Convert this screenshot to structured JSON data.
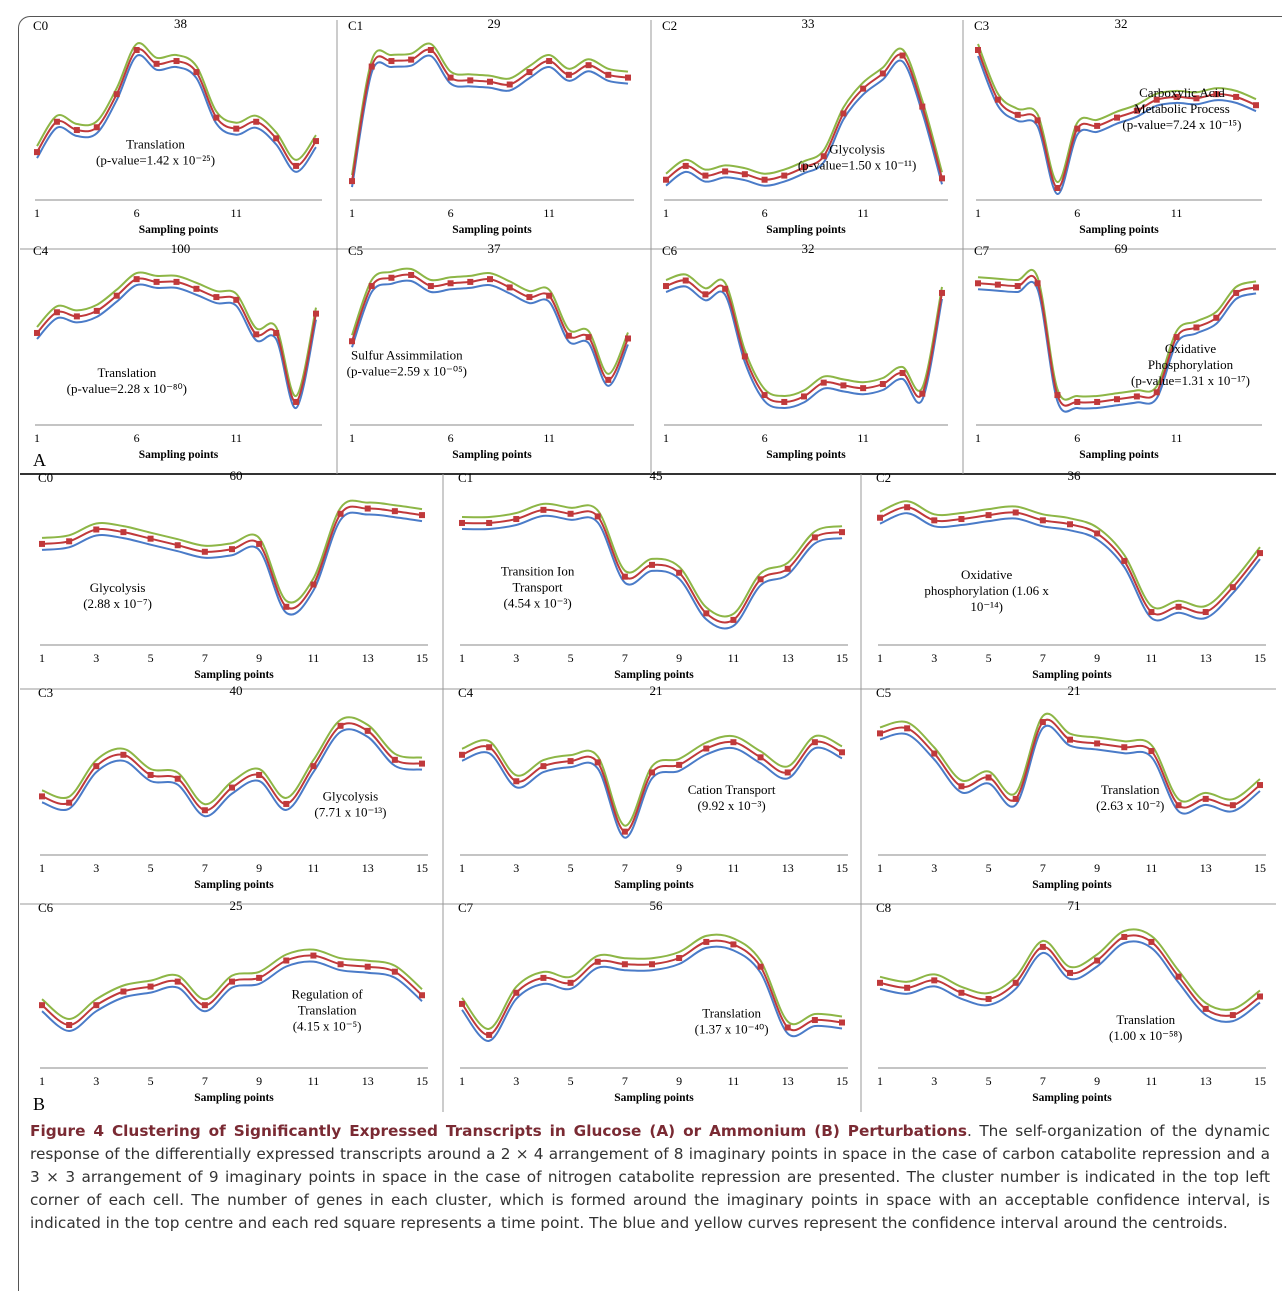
{
  "caption": {
    "title": "Figure 4 Clustering of Significantly Expressed Transcripts in Glucose (A) or Ammonium (B) Perturbations",
    "body": ". The self-organization of the dynamic response of the differentially expressed transcripts around a 2 × 4 arrangement of 8 imaginary points in space in the case of carbon catabolite repression and a 3 × 3 arrangement of 9 imaginary points in space in the case of nitrogen catabolite repression are presented. The cluster number is indicated in the top left corner of each cell. The number of genes in each cluster, which is formed around the imaginary points in space with an acceptable confidence interval, is indicated in the top centre and each red square represents a time point. The blue and yellow curves represent the confidence interval around the centroids."
  },
  "colors": {
    "centroid": "#c0393b",
    "lower": "#4a7bc8",
    "upper": "#8db646",
    "axis": "#888888",
    "divider": "#999999"
  },
  "xlabel": "Sampling points",
  "chart_data": [
    {
      "type": "line",
      "section": "A",
      "cluster": "C0",
      "count": "38",
      "ticks": [
        "1",
        "6",
        "11"
      ],
      "n": 15,
      "annotation": [
        "Translation",
        "(p-value=1.42 x 10⁻²⁵)"
      ],
      "ylim": [
        0,
        100
      ],
      "values": [
        26,
        48,
        42,
        44,
        68,
        100,
        90,
        92,
        84,
        51,
        43,
        48,
        36,
        16,
        34
      ]
    },
    {
      "type": "line",
      "section": "A",
      "cluster": "C1",
      "count": "29",
      "ticks": [
        "1",
        "6",
        "11"
      ],
      "n": 15,
      "annotation": [],
      "ylim": [
        0,
        100
      ],
      "values": [
        5,
        88,
        92,
        93,
        100,
        80,
        78,
        77,
        75,
        84,
        92,
        82,
        89,
        82,
        80
      ]
    },
    {
      "type": "line",
      "section": "A",
      "cluster": "C2",
      "count": "33",
      "ticks": [
        "1",
        "6",
        "11"
      ],
      "n": 15,
      "annotation": [
        "Glycolysis",
        "(p-value=1.50 x 10⁻¹¹)"
      ],
      "ylim": [
        0,
        100
      ],
      "values": [
        6,
        16,
        9,
        12,
        10,
        6,
        9,
        15,
        23,
        54,
        72,
        83,
        96,
        59,
        7
      ]
    },
    {
      "type": "line",
      "section": "A",
      "cluster": "C3",
      "count": "32",
      "ticks": [
        "1",
        "6",
        "11"
      ],
      "n": 15,
      "annotation": [
        "Carboxylic Acid",
        "Metabolic Process",
        "(p-value=7.24 x 10⁻¹⁵)"
      ],
      "ylim": [
        0,
        100
      ],
      "values": [
        100,
        64,
        53,
        49,
        0,
        43,
        45,
        51,
        56,
        64,
        66,
        65,
        68,
        66,
        60
      ]
    },
    {
      "type": "line",
      "section": "A",
      "cluster": "C4",
      "count": "100",
      "ticks": [
        "1",
        "6",
        "11"
      ],
      "n": 15,
      "annotation": [
        "Translation",
        "(p-value=2.28 x 10⁻⁸⁰)"
      ],
      "ylim": [
        0,
        100
      ],
      "values": [
        58,
        73,
        70,
        74,
        85,
        97,
        95,
        95,
        90,
        84,
        82,
        57,
        58,
        8,
        72
      ]
    },
    {
      "type": "line",
      "section": "A",
      "cluster": "C5",
      "count": "37",
      "ticks": [
        "1",
        "6",
        "11"
      ],
      "n": 15,
      "annotation": [
        "Sulfur Assimmilation",
        "(p-value=2.59 x 10⁻⁰⁵)"
      ],
      "ylim": [
        0,
        100
      ],
      "values": [
        52,
        92,
        98,
        100,
        92,
        94,
        95,
        97,
        91,
        84,
        85,
        56,
        55,
        24,
        54
      ]
    },
    {
      "type": "line",
      "section": "A",
      "cluster": "C6",
      "count": "32",
      "ticks": [
        "1",
        "6",
        "11"
      ],
      "n": 15,
      "annotation": [],
      "ylim": [
        0,
        100
      ],
      "values": [
        92,
        96,
        86,
        90,
        41,
        13,
        8,
        12,
        22,
        20,
        18,
        21,
        29,
        14,
        87
      ]
    },
    {
      "type": "line",
      "section": "A",
      "cluster": "C7",
      "count": "69",
      "ticks": [
        "1",
        "6",
        "11"
      ],
      "n": 15,
      "annotation": [
        "Oxidative",
        "Phosphorylation",
        "(p-value=1.31 x 10⁻¹⁷)"
      ],
      "ylim": [
        0,
        100
      ],
      "values": [
        94,
        93,
        92,
        94,
        13,
        8,
        8,
        10,
        12,
        15,
        55,
        62,
        69,
        87,
        91
      ]
    },
    {
      "type": "line",
      "section": "B",
      "cluster": "C0",
      "count": "60",
      "ticks": [
        "1",
        "3",
        "5",
        "7",
        "9",
        "11",
        "13",
        "15"
      ],
      "n": 15,
      "annotation": [
        "Glycolysis",
        "(2.88 x 10⁻⁷)"
      ],
      "ylim": [
        0,
        100
      ],
      "values": [
        68,
        70,
        79,
        77,
        72,
        67,
        62,
        64,
        68,
        20,
        37,
        91,
        95,
        93,
        90
      ]
    },
    {
      "type": "line",
      "section": "B",
      "cluster": "C1",
      "count": "45",
      "ticks": [
        "1",
        "3",
        "5",
        "7",
        "9",
        "11",
        "13",
        "15"
      ],
      "n": 15,
      "annotation": [
        "Transition Ion",
        "Transport",
        "(4.54 x 10⁻³)"
      ],
      "ylim": [
        0,
        100
      ],
      "values": [
        84,
        84,
        87,
        94,
        91,
        89,
        43,
        52,
        46,
        15,
        10,
        41,
        49,
        73,
        77
      ]
    },
    {
      "type": "line",
      "section": "B",
      "cluster": "C2",
      "count": "36",
      "ticks": [
        "1",
        "3",
        "5",
        "7",
        "9",
        "11",
        "13",
        "15"
      ],
      "n": 15,
      "annotation": [
        "Oxidative",
        "phosphorylation (1.06 x",
        "10⁻¹⁴)"
      ],
      "ylim": [
        0,
        100
      ],
      "values": [
        88,
        96,
        86,
        87,
        90,
        92,
        86,
        83,
        76,
        55,
        16,
        20,
        16,
        35,
        61
      ]
    },
    {
      "type": "line",
      "section": "B",
      "cluster": "C3",
      "count": "40",
      "ticks": [
        "1",
        "3",
        "5",
        "7",
        "9",
        "11",
        "13",
        "15"
      ],
      "n": 15,
      "annotation": [
        "Glycolysis",
        "(7.71 x 10⁻¹³)"
      ],
      "ylim": [
        0,
        100
      ],
      "values": [
        37,
        32,
        61,
        70,
        54,
        51,
        26,
        44,
        54,
        31,
        61,
        93,
        89,
        66,
        63
      ]
    },
    {
      "type": "line",
      "section": "B",
      "cluster": "C4",
      "count": "21",
      "ticks": [
        "1",
        "3",
        "5",
        "7",
        "9",
        "11",
        "13",
        "15"
      ],
      "n": 15,
      "annotation": [
        "Cation Transport",
        "(9.92 x 10⁻³)"
      ],
      "ylim": [
        0,
        100
      ],
      "values": [
        70,
        76,
        49,
        61,
        65,
        64,
        9,
        56,
        62,
        75,
        80,
        68,
        56,
        80,
        72
      ]
    },
    {
      "type": "line",
      "section": "B",
      "cluster": "C5",
      "count": "21",
      "ticks": [
        "1",
        "3",
        "5",
        "7",
        "9",
        "11",
        "13",
        "15"
      ],
      "n": 15,
      "annotation": [
        "Translation",
        "(2.63 x 10⁻²)"
      ],
      "ylim": [
        0,
        100
      ],
      "values": [
        87,
        91,
        71,
        45,
        52,
        35,
        96,
        82,
        79,
        76,
        73,
        30,
        35,
        30,
        46
      ]
    },
    {
      "type": "line",
      "section": "B",
      "cluster": "C6",
      "count": "25",
      "ticks": [
        "1",
        "3",
        "5",
        "7",
        "9",
        "11",
        "13",
        "15"
      ],
      "n": 15,
      "annotation": [
        "Regulation of",
        "Translation",
        "(4.15 x 10⁻⁵)"
      ],
      "ylim": [
        0,
        100
      ],
      "values": [
        41,
        25,
        41,
        52,
        56,
        60,
        41,
        60,
        63,
        77,
        81,
        74,
        72,
        68,
        49
      ]
    },
    {
      "type": "line",
      "section": "B",
      "cluster": "C7",
      "count": "56",
      "ticks": [
        "1",
        "3",
        "5",
        "7",
        "9",
        "11",
        "13",
        "15"
      ],
      "n": 15,
      "annotation": [
        "Translation",
        "(1.37 x 10⁻⁴⁰)"
      ],
      "ylim": [
        0,
        100
      ],
      "values": [
        42,
        17,
        51,
        63,
        59,
        76,
        74,
        74,
        79,
        92,
        90,
        72,
        23,
        29,
        27
      ]
    },
    {
      "type": "line",
      "section": "B",
      "cluster": "C8",
      "count": "71",
      "ticks": [
        "1",
        "3",
        "5",
        "7",
        "9",
        "11",
        "13",
        "15"
      ],
      "n": 15,
      "annotation": [
        "Translation",
        "(1.00 x 10⁻⁵⁸)"
      ],
      "ylim": [
        0,
        100
      ],
      "values": [
        59,
        55,
        61,
        51,
        46,
        59,
        88,
        67,
        77,
        96,
        92,
        64,
        38,
        33,
        48
      ]
    }
  ],
  "section_labels": {
    "A": "A",
    "B": "B"
  }
}
